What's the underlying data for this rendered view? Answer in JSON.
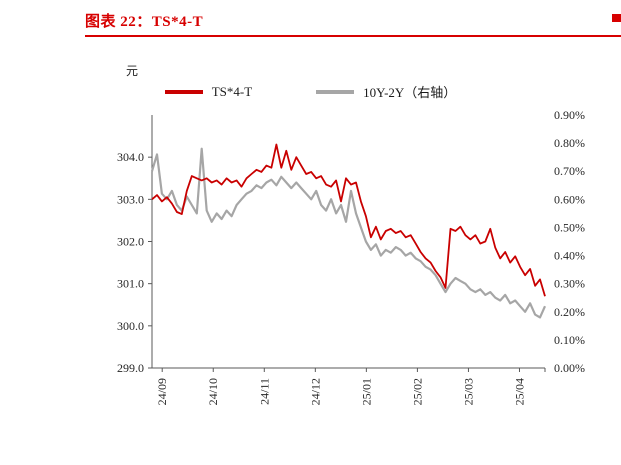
{
  "header": {
    "title": "图表 22：TS*4-T",
    "accent_color": "#d70000"
  },
  "unit_label": "元",
  "legend": [
    {
      "label": "TS*4-T",
      "color": "#c90000"
    },
    {
      "label": "10Y-2Y（右轴）",
      "color": "#a6a6a6"
    }
  ],
  "chart_data": {
    "type": "line",
    "title": "图表 22：TS*4-T",
    "x_tick_labels": [
      "24/09",
      "24/10",
      "24/11",
      "24/12",
      "25/01",
      "25/02",
      "25/03",
      "25/04"
    ],
    "left_axis": {
      "label": "元",
      "min": 299,
      "max": 305,
      "tick_values": [
        299,
        300,
        301,
        302,
        303,
        304
      ],
      "tick_labels": [
        "299.0",
        "300.0",
        "301.0",
        "302.0",
        "303.0",
        "304.0"
      ]
    },
    "right_axis": {
      "label": "10Y-2Y（右轴）",
      "min": 0,
      "max": 0.9,
      "tick_values": [
        0,
        0.1,
        0.2,
        0.3,
        0.4,
        0.5,
        0.6,
        0.7,
        0.8,
        0.9
      ],
      "tick_labels": [
        "0.00%",
        "0.10%",
        "0.20%",
        "0.30%",
        "0.40%",
        "0.50%",
        "0.60%",
        "0.70%",
        "0.80%",
        "0.90%"
      ]
    },
    "grid": false,
    "legend_position": "top",
    "series": [
      {
        "name": "10Y-2Y（右轴）",
        "axis": "right",
        "color": "#a6a6a6",
        "width": 2.2,
        "values": [
          0.7,
          0.76,
          0.62,
          0.6,
          0.63,
          0.58,
          0.56,
          0.61,
          0.58,
          0.55,
          0.78,
          0.56,
          0.52,
          0.55,
          0.53,
          0.56,
          0.54,
          0.58,
          0.6,
          0.62,
          0.63,
          0.65,
          0.64,
          0.66,
          0.67,
          0.65,
          0.68,
          0.66,
          0.64,
          0.66,
          0.64,
          0.62,
          0.6,
          0.63,
          0.58,
          0.56,
          0.6,
          0.55,
          0.58,
          0.52,
          0.63,
          0.55,
          0.5,
          0.45,
          0.42,
          0.44,
          0.4,
          0.42,
          0.41,
          0.43,
          0.42,
          0.4,
          0.41,
          0.39,
          0.38,
          0.36,
          0.35,
          0.33,
          0.3,
          0.27,
          0.3,
          0.32,
          0.31,
          0.3,
          0.28,
          0.27,
          0.28,
          0.26,
          0.27,
          0.25,
          0.24,
          0.26,
          0.23,
          0.24,
          0.22,
          0.2,
          0.23,
          0.19,
          0.18,
          0.22
        ]
      },
      {
        "name": "TS*4-T",
        "axis": "left",
        "color": "#c90000",
        "width": 1.8,
        "values": [
          303.0,
          303.1,
          302.95,
          303.05,
          302.9,
          302.7,
          302.65,
          303.2,
          303.55,
          303.5,
          303.45,
          303.5,
          303.4,
          303.45,
          303.35,
          303.5,
          303.4,
          303.45,
          303.3,
          303.5,
          303.6,
          303.7,
          303.65,
          303.8,
          303.75,
          304.3,
          303.75,
          304.15,
          303.7,
          304.0,
          303.8,
          303.6,
          303.65,
          303.5,
          303.55,
          303.35,
          303.3,
          303.45,
          302.95,
          303.5,
          303.35,
          303.4,
          302.95,
          302.6,
          302.1,
          302.35,
          302.05,
          302.25,
          302.3,
          302.2,
          302.25,
          302.1,
          302.15,
          301.95,
          301.75,
          301.6,
          301.5,
          301.3,
          301.15,
          300.9,
          302.3,
          302.25,
          302.35,
          302.15,
          302.05,
          302.15,
          301.95,
          302.0,
          302.3,
          301.85,
          301.6,
          301.75,
          301.5,
          301.65,
          301.4,
          301.2,
          301.35,
          300.95,
          301.1,
          300.7
        ]
      }
    ]
  }
}
